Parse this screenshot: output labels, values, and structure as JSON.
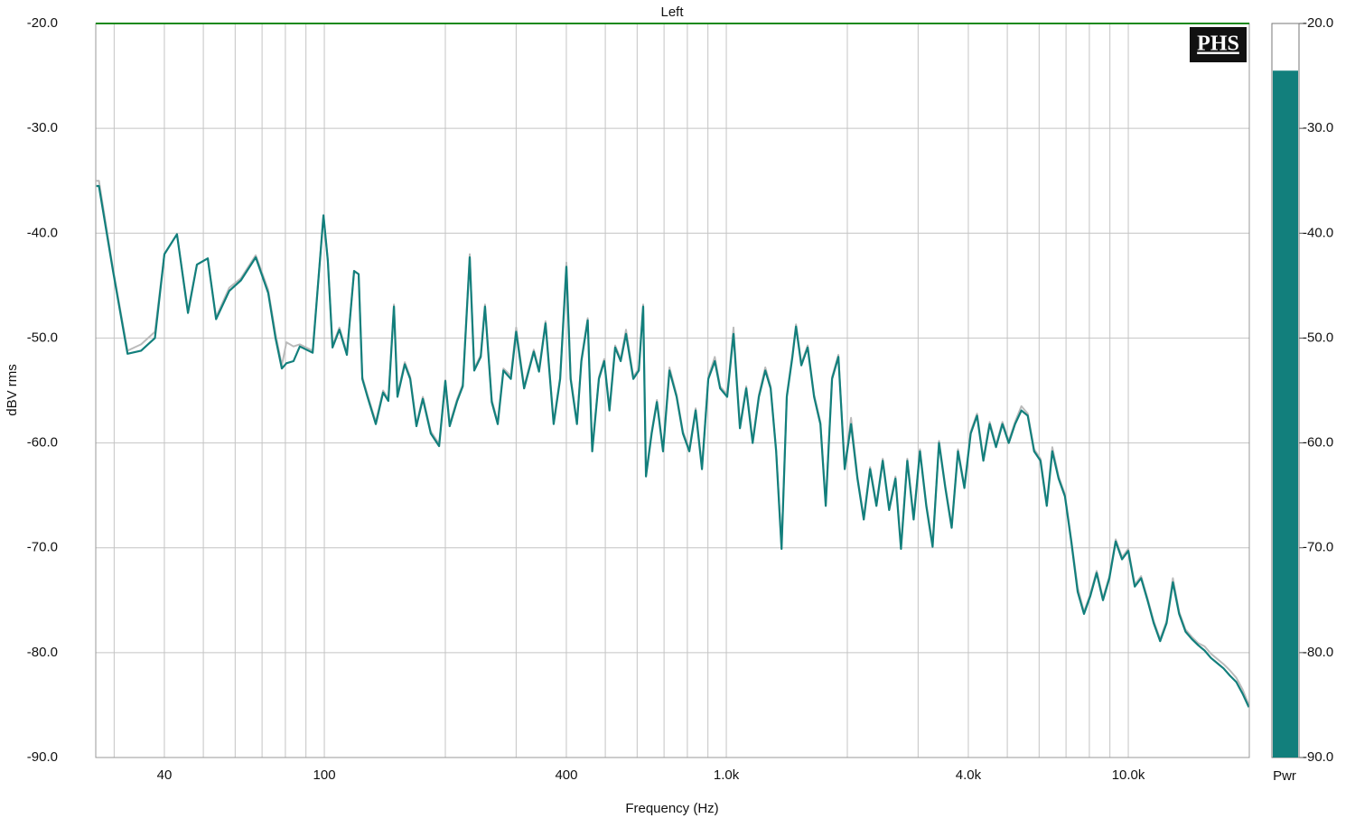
{
  "chart_data": {
    "type": "line",
    "title": "Left",
    "xlabel": "Frequency (Hz)",
    "ylabel": "dBV rms",
    "logo": "PHS",
    "xscale": "log",
    "xlim": [
      27,
      20000
    ],
    "ylim": [
      -90,
      -20
    ],
    "grid": true,
    "xticks": [
      40,
      100,
      400,
      {
        "value": 1000,
        "label": "1.0k"
      },
      {
        "value": 4000,
        "label": "4.0k"
      },
      {
        "value": 10000,
        "label": "10.0k"
      }
    ],
    "xminor": [
      30,
      50,
      60,
      70,
      80,
      90,
      200,
      300,
      500,
      600,
      700,
      800,
      900,
      2000,
      3000,
      5000,
      6000,
      7000,
      8000,
      9000
    ],
    "yticks": [
      {
        "value": -20,
        "label": "-20.0"
      },
      {
        "value": -30,
        "label": "-30.0"
      },
      {
        "value": -40,
        "label": "-40.0"
      },
      {
        "value": -50,
        "label": "-50.0"
      },
      {
        "value": -60,
        "label": "-60.0"
      },
      {
        "value": -70,
        "label": "-70.0"
      },
      {
        "value": -80,
        "label": "-80.0"
      },
      {
        "value": -90,
        "label": "-90.0"
      }
    ],
    "x": [
      27.1,
      27.5,
      29.8,
      32.4,
      35,
      37.9,
      40,
      43,
      45.8,
      48.2,
      51.3,
      53.8,
      58,
      62,
      67.5,
      72.5,
      75.6,
      78.4,
      80.5,
      83.8,
      86.9,
      93.5,
      99.5,
      102,
      104.8,
      109,
      113.8,
      118.6,
      121.7,
      124.3,
      128,
      134.3,
      140,
      144.3,
      149,
      152,
      158.5,
      163.5,
      169.5,
      175.8,
      184,
      193,
      200,
      205,
      214,
      221,
      230,
      236,
      245,
      251,
      261,
      270,
      279,
      291,
      300,
      314,
      332,
      342,
      355,
      372,
      386,
      400,
      410,
      425,
      436,
      452,
      464,
      482,
      497,
      512,
      529,
      546,
      563,
      587,
      606,
      621,
      631,
      652,
      672,
      696,
      722,
      752,
      780,
      809,
      839,
      870,
      902,
      936,
      965,
      1005,
      1042,
      1081,
      1121,
      1163,
      1205,
      1250,
      1289,
      1330,
      1372,
      1414,
      1460,
      1491,
      1537,
      1594,
      1653,
      1714,
      1767,
      1833,
      1900,
      1970,
      2043,
      2119,
      2197,
      2279,
      2363,
      2450,
      2541,
      2635,
      2719,
      2820,
      2924,
      3032,
      3144,
      3260,
      3381,
      3506,
      3636,
      3770,
      3910,
      4054,
      4204,
      4360,
      4521,
      4688,
      4862,
      5041,
      5228,
      5421,
      5622,
      5830,
      6045,
      6269,
      6469,
      6708,
      6956,
      7214,
      7481,
      7757,
      8044,
      8342,
      8651,
      8971,
      9303,
      9647,
      10000,
      10380,
      10760,
      11160,
      11570,
      12000,
      12450,
      12910,
      13380,
      13880,
      14390,
      14930,
      15480,
      16050,
      16640,
      17260,
      17900,
      18560,
      19240,
      19950
    ],
    "series": [
      {
        "color": "#bbbbbb",
        "values": [
          -35.0,
          -35.0,
          -43.4,
          -51.2,
          -50.6,
          -49.4,
          -42.0,
          -40.1,
          -47.4,
          -43.0,
          -42.4,
          -48.0,
          -45.2,
          -44.3,
          -42.1,
          -45.4,
          -49.6,
          -52.6,
          -50.4,
          -50.8,
          -50.6,
          -51.2,
          -38.3,
          -42.6,
          -50.7,
          -49.0,
          -51.4,
          -43.6,
          -43.9,
          -53.7,
          -55.4,
          -58.0,
          -55.0,
          -55.8,
          -46.8,
          -55.4,
          -52.3,
          -53.7,
          -58.2,
          -55.6,
          -58.9,
          -60.1,
          -54.0,
          -58.2,
          -55.8,
          -54.4,
          -42.0,
          -52.9,
          -51.6,
          -46.8,
          -55.9,
          -58.0,
          -52.9,
          -53.6,
          -49.0,
          -54.6,
          -51.1,
          -53.0,
          -48.4,
          -58.0,
          -53.7,
          -42.8,
          -53.7,
          -58.0,
          -52.0,
          -48.1,
          -60.6,
          -53.7,
          -52.0,
          -56.7,
          -50.7,
          -52.0,
          -49.2,
          -53.7,
          -52.9,
          -46.8,
          -63.0,
          -58.9,
          -55.9,
          -60.6,
          -52.8,
          -55.4,
          -58.9,
          -60.6,
          -56.7,
          -62.3,
          -53.7,
          -51.8,
          -54.6,
          -55.4,
          -49.0,
          -58.4,
          -54.6,
          -59.8,
          -55.4,
          -52.8,
          -54.6,
          -60.6,
          -69.9,
          -55.4,
          -51.6,
          -48.7,
          -52.4,
          -50.7,
          -55.4,
          -58.0,
          -65.8,
          -53.7,
          -51.6,
          -62.3,
          -57.6,
          -63.2,
          -67.1,
          -62.3,
          -65.8,
          -61.5,
          -66.2,
          -63.2,
          -69.9,
          -61.5,
          -67.1,
          -60.6,
          -65.8,
          -69.7,
          -59.8,
          -64.1,
          -67.9,
          -60.6,
          -64.1,
          -58.9,
          -57.2,
          -61.5,
          -58.0,
          -60.2,
          -58.0,
          -59.8,
          -58.0,
          -56.5,
          -57.2,
          -60.6,
          -61.5,
          -65.8,
          -60.4,
          -63.2,
          -64.9,
          -69.2,
          -73.8,
          -76.1,
          -74.4,
          -72.2,
          -74.8,
          -72.7,
          -69.2,
          -70.9,
          -70.1,
          -73.5,
          -72.7,
          -74.8,
          -77.0,
          -78.7,
          -77.0,
          -72.9,
          -76.1,
          -77.8,
          -78.5,
          -79.1,
          -79.4,
          -80.1,
          -80.6,
          -81.1,
          -81.7,
          -82.4,
          -83.5,
          -85.0
        ]
      },
      {
        "color": "#127f7c",
        "values": [
          -35.5,
          -35.5,
          -43.6,
          -51.5,
          -51.2,
          -50.0,
          -42.0,
          -40.1,
          -47.6,
          -43.0,
          -42.4,
          -48.2,
          -45.5,
          -44.5,
          -42.3,
          -45.7,
          -50.0,
          -52.9,
          -52.4,
          -52.2,
          -50.8,
          -51.4,
          -38.3,
          -42.6,
          -50.9,
          -49.2,
          -51.6,
          -43.6,
          -43.9,
          -53.9,
          -55.6,
          -58.2,
          -55.2,
          -56.0,
          -47.0,
          -55.6,
          -52.5,
          -53.9,
          -58.4,
          -55.8,
          -59.1,
          -60.3,
          -54.1,
          -58.4,
          -56.0,
          -54.6,
          -42.3,
          -53.1,
          -51.8,
          -47.0,
          -56.1,
          -58.2,
          -53.1,
          -53.9,
          -49.4,
          -54.8,
          -51.3,
          -53.2,
          -48.6,
          -58.2,
          -53.9,
          -43.2,
          -53.9,
          -58.2,
          -52.2,
          -48.3,
          -60.8,
          -53.9,
          -52.2,
          -56.9,
          -50.9,
          -52.2,
          -49.6,
          -53.9,
          -53.1,
          -47.0,
          -63.2,
          -59.1,
          -56.1,
          -60.8,
          -53.1,
          -55.6,
          -59.1,
          -60.8,
          -56.9,
          -62.5,
          -53.9,
          -52.2,
          -54.8,
          -55.6,
          -49.6,
          -58.6,
          -54.8,
          -60.0,
          -55.6,
          -53.1,
          -54.8,
          -60.8,
          -70.1,
          -55.6,
          -51.8,
          -48.9,
          -52.6,
          -50.9,
          -55.6,
          -58.2,
          -66.0,
          -53.9,
          -51.8,
          -62.5,
          -58.2,
          -63.4,
          -67.3,
          -62.5,
          -66.0,
          -61.7,
          -66.4,
          -63.4,
          -70.1,
          -61.7,
          -67.3,
          -60.8,
          -66.0,
          -69.9,
          -60.0,
          -64.3,
          -68.1,
          -60.8,
          -64.3,
          -59.1,
          -57.4,
          -61.7,
          -58.2,
          -60.4,
          -58.2,
          -60.0,
          -58.2,
          -56.9,
          -57.4,
          -60.8,
          -61.7,
          -66.0,
          -60.8,
          -63.4,
          -65.1,
          -69.4,
          -74.2,
          -76.3,
          -74.6,
          -72.4,
          -75.0,
          -72.9,
          -69.4,
          -71.1,
          -70.3,
          -73.7,
          -72.9,
          -75.0,
          -77.2,
          -78.9,
          -77.2,
          -73.3,
          -76.3,
          -78.0,
          -78.7,
          -79.3,
          -79.8,
          -80.5,
          -81.0,
          -81.5,
          -82.2,
          -82.8,
          -83.9,
          -85.2
        ]
      }
    ],
    "meter": {
      "label": "Pwr",
      "value": -24.5,
      "color": "#127f7c"
    }
  }
}
